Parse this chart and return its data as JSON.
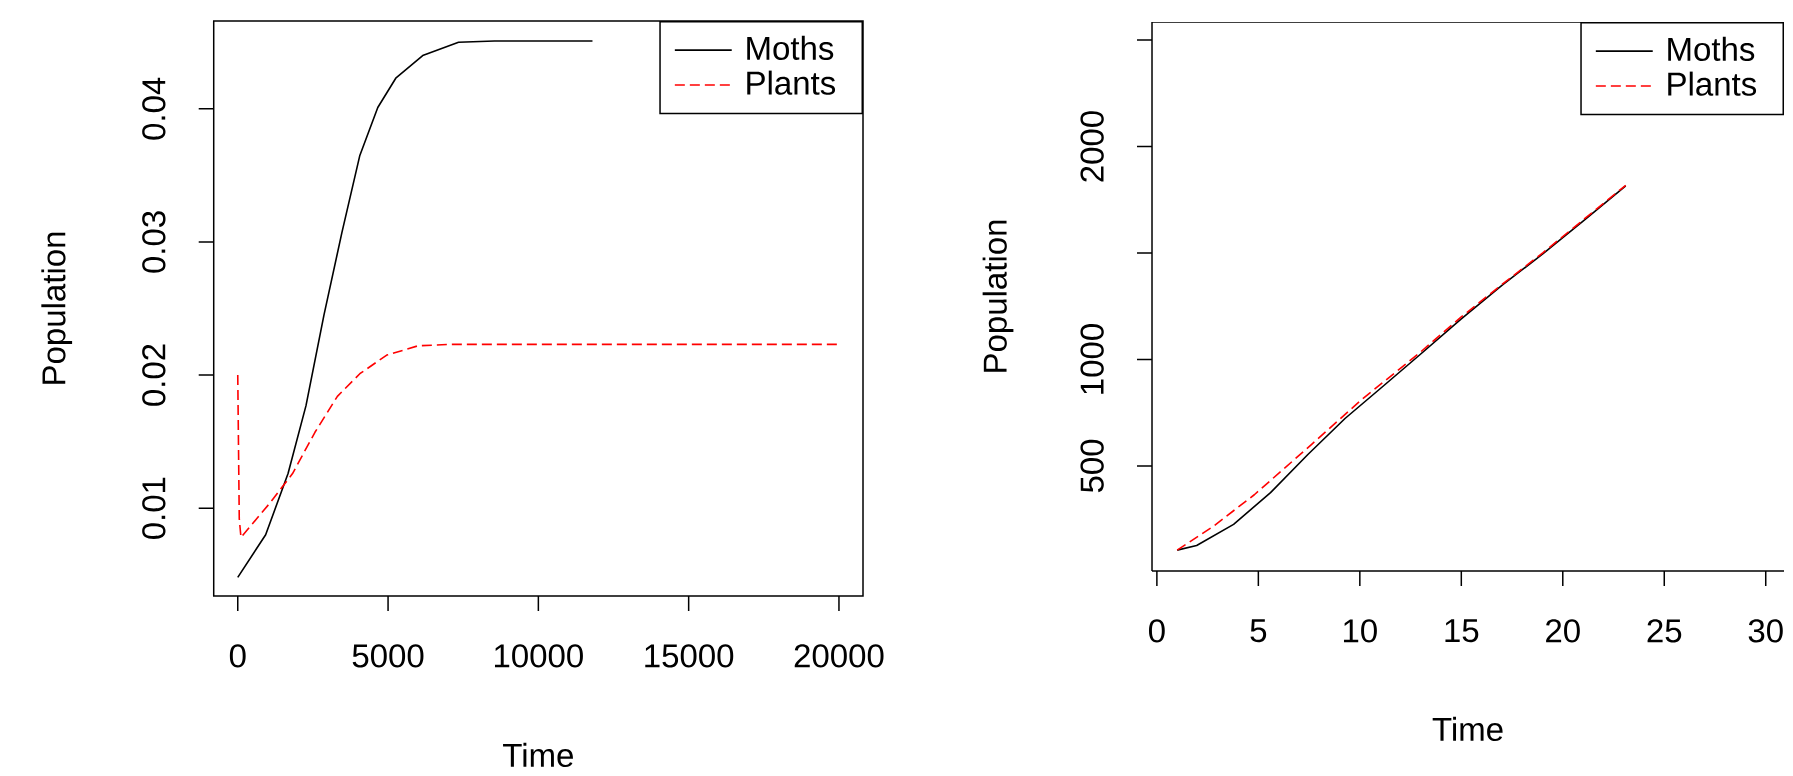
{
  "chart_data": [
    {
      "type": "line",
      "xlabel": "Time",
      "ylabel": "Population",
      "xlim": [
        -800,
        20800
      ],
      "ylim": [
        0.0034,
        0.0466
      ],
      "xticks": [
        0,
        5000,
        10000,
        15000,
        20000
      ],
      "yticks": [
        0.01,
        0.02,
        0.03,
        0.04
      ],
      "legend": "top right",
      "series": [
        {
          "name": "Moths",
          "color": "#000000",
          "line_style": "solid",
          "x": [
            0,
            928,
            1673,
            2270,
            2867,
            3464,
            4061,
            4658,
            5256,
            6152,
            7345,
            8540,
            11800
          ],
          "values": [
            0.0048,
            0.008,
            0.0126,
            0.0177,
            0.0245,
            0.0307,
            0.0365,
            0.0401,
            0.0423,
            0.044,
            0.045,
            0.0451,
            0.0451
          ]
        },
        {
          "name": "Plants",
          "color": "#ff0000",
          "line_style": "dashed",
          "x": [
            0,
            50,
            107,
            1075,
            1823,
            2568,
            3314,
            4061,
            4957,
            6002,
            7048,
            20000
          ],
          "values": [
            0.02,
            0.0092,
            0.0078,
            0.0104,
            0.0126,
            0.0157,
            0.0184,
            0.0201,
            0.0215,
            0.0222,
            0.0223,
            0.0223
          ]
        }
      ]
    },
    {
      "type": "line",
      "xlabel": "Time",
      "ylabel": "Population",
      "xlim": [
        -0.24,
        30.9
      ],
      "ylim": [
        7,
        2585
      ],
      "xticks": [
        0,
        5,
        10,
        15,
        20,
        25,
        30
      ],
      "yticks": [
        500,
        1000,
        {
          "value": 1500,
          "label": null
        },
        2000,
        {
          "value": 2500,
          "label": null
        }
      ],
      "legend": "top right",
      "series": [
        {
          "name": "Moths",
          "color": "#000000",
          "line_style": "solid",
          "x": [
            1,
            1.96,
            3.78,
            5.6,
            7.44,
            9.27,
            11.1,
            12.93,
            14.97,
            17,
            19.03,
            21.06,
            23.1
          ],
          "values": [
            105,
            127,
            226,
            375,
            554,
            723,
            871,
            1020,
            1189,
            1348,
            1497,
            1655,
            1815
          ]
        },
        {
          "name": "Plants",
          "color": "#ff0000",
          "line_style": "dashed",
          "x": [
            1,
            2.77,
            4.8,
            7.64,
            10.09,
            12.93,
            14.97,
            17,
            19.03,
            21.06,
            23.1
          ],
          "values": [
            105,
            216,
            365,
            603,
            812,
            1030,
            1198,
            1352,
            1502,
            1660,
            1818
          ]
        }
      ]
    }
  ]
}
